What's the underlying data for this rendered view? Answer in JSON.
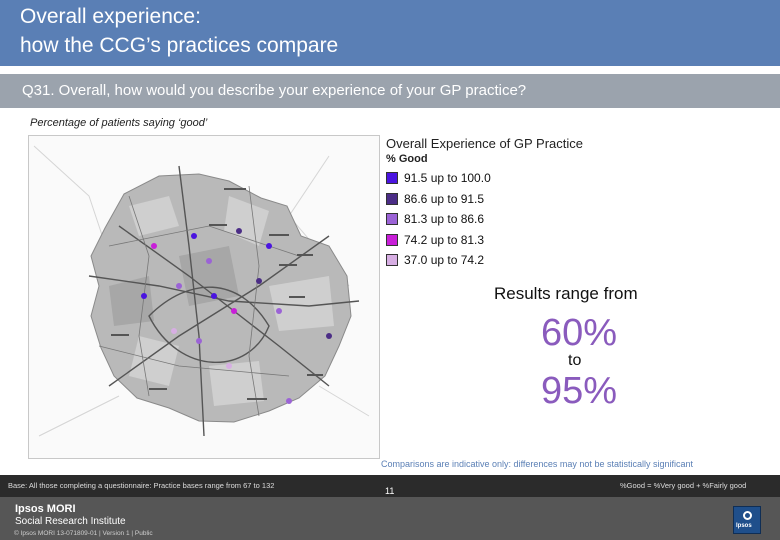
{
  "title": {
    "line1": "Overall experience:",
    "line2": "how the CCG’s practices compare"
  },
  "question": "Q31. Overall, how would you describe your experience of your GP practice?",
  "subtitle": "Percentage of patients saying ‘good’",
  "legend": {
    "title": "Overall Experience of GP Practice",
    "subtitle": "% Good",
    "items": [
      {
        "label": "91.5 up to 100.0",
        "color": "#4a14e0"
      },
      {
        "label": "86.6 up to 91.5",
        "color": "#4b2d86"
      },
      {
        "label": "81.3 up to 86.6",
        "color": "#9b63d6"
      },
      {
        "label": "74.2 up to 81.3",
        "color": "#c81fd8"
      },
      {
        "label": "37.0 up to 74.2",
        "color": "#d7aee3"
      }
    ]
  },
  "results": {
    "label": "Results range from",
    "low": "60%",
    "to": "to",
    "high": "95%"
  },
  "caveat": "Comparisons are indicative only: differences may not be statistically significant",
  "footer": {
    "base": "Base: All those completing a questionnaire: Practice bases range from 67 to 132",
    "good_def": "%Good = %Very good + %Fairly good",
    "brand_line1": "Ipsos MORI",
    "brand_line2": "Social Research Institute",
    "copyright": "© Ipsos MORI     13-071809-01 | Version 1 | Public",
    "page": "11",
    "logo_text": "Ipsos"
  }
}
